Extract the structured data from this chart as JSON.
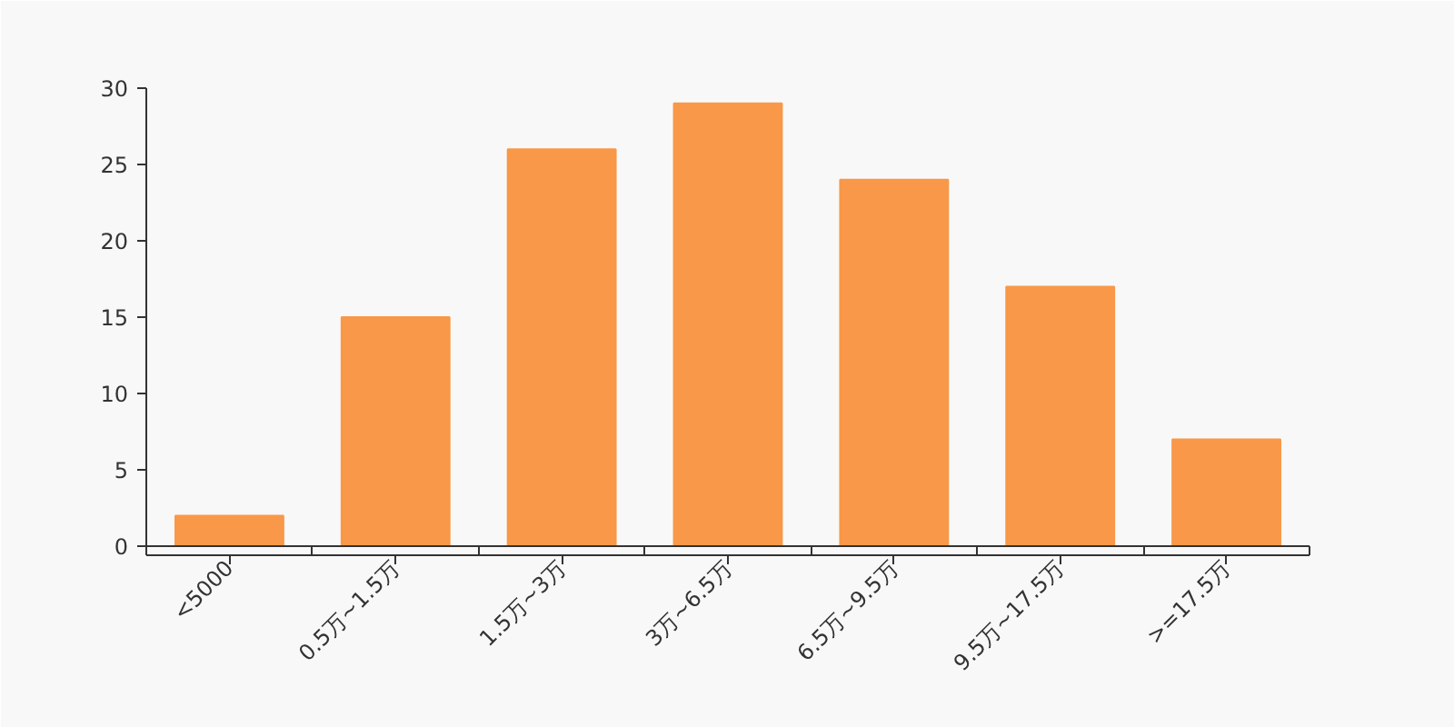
{
  "chart_data": {
    "type": "bar",
    "categories": [
      "<5000",
      "0.5万~1.5万",
      "1.5万~3万",
      "3万~6.5万",
      "6.5万~9.5万",
      "9.5万~17.5万",
      ">=17.5万"
    ],
    "values": [
      2,
      15,
      26,
      29,
      24,
      17,
      7
    ],
    "color": "#f89848",
    "ylim": [
      0,
      30
    ],
    "yticks": [
      0,
      5,
      10,
      15,
      20,
      25,
      30
    ],
    "grid": false
  }
}
